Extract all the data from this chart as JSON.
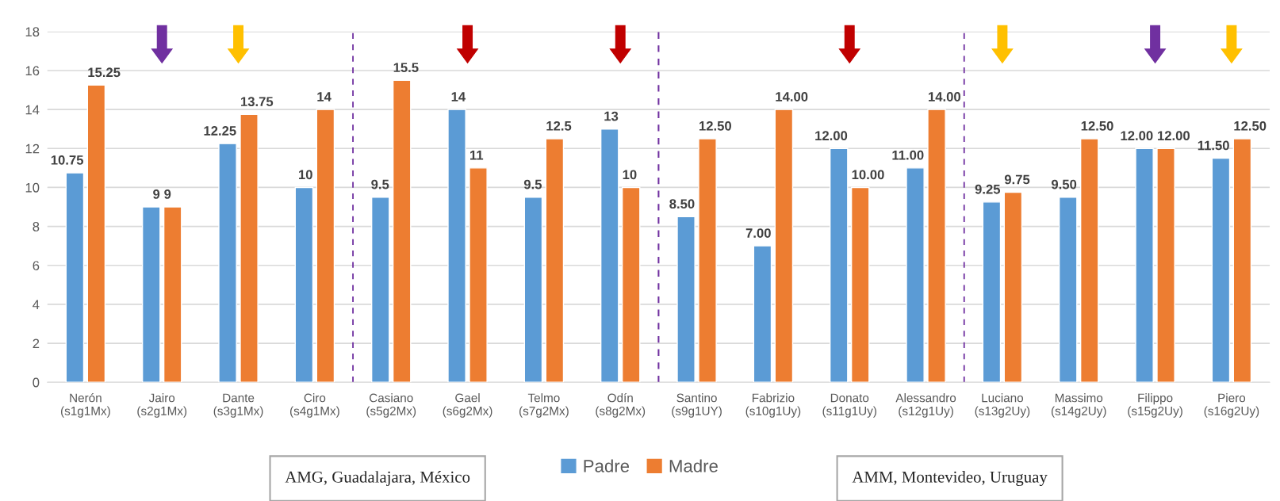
{
  "chart_data": {
    "type": "bar",
    "categories": [
      "Nerón\n(s1g1Mx)",
      "Jairo\n(s2g1Mx)",
      "Dante\n(s3g1Mx)",
      "Ciro\n(s4g1Mx)",
      "Casiano\n(s5g2Mx)",
      "Gael\n(s6g2Mx)",
      "Telmo\n(s7g2Mx)",
      "Odín\n(s8g2Mx)",
      "Santino\n(s9g1UY)",
      "Fabrizio\n(s10g1Uy)",
      "Donato\n(s11g1Uy)",
      "Alessandro\n(s12g1Uy)",
      "Luciano\n(s13g2Uy)",
      "Massimo\n(s14g2Uy)",
      "Filippo\n(s15g2Uy)",
      "Piero\n(s16g2Uy)"
    ],
    "series": [
      {
        "name": "Padre",
        "color": "#5b9bd5",
        "values": [
          10.75,
          9,
          12.25,
          10,
          9.5,
          14,
          9.5,
          13,
          8.5,
          7,
          12,
          11,
          9.25,
          9.5,
          12,
          11.5
        ],
        "value_labels": [
          "10.75",
          "9",
          "12.25",
          "10",
          "9.5",
          "14",
          "9.5",
          "13",
          "8.50",
          "7.00",
          "12.00",
          "11.00",
          "9.25",
          "9.50",
          "12.00",
          "11.50"
        ]
      },
      {
        "name": "Madre",
        "color": "#ed7d31",
        "values": [
          15.25,
          9,
          13.75,
          14,
          15.5,
          11,
          12.5,
          10,
          12.5,
          14,
          10,
          14,
          9.75,
          12.5,
          12,
          12.5
        ],
        "value_labels": [
          "15.25",
          "9",
          "13.75",
          "14",
          "15.5",
          "11",
          "12.5",
          "10",
          "12.50",
          "14.00",
          "10.00",
          "14.00",
          "9.75",
          "12.50",
          "12.00",
          "12.50"
        ]
      }
    ],
    "ylim": [
      0,
      18
    ],
    "yticks": [
      0,
      2,
      4,
      6,
      8,
      10,
      12,
      14,
      16,
      18
    ],
    "grid": "y",
    "legend": "bottom",
    "annotations": [
      "AMG, Guadalajara, México",
      "AMM, Montevideo, Uruguay"
    ]
  }
}
